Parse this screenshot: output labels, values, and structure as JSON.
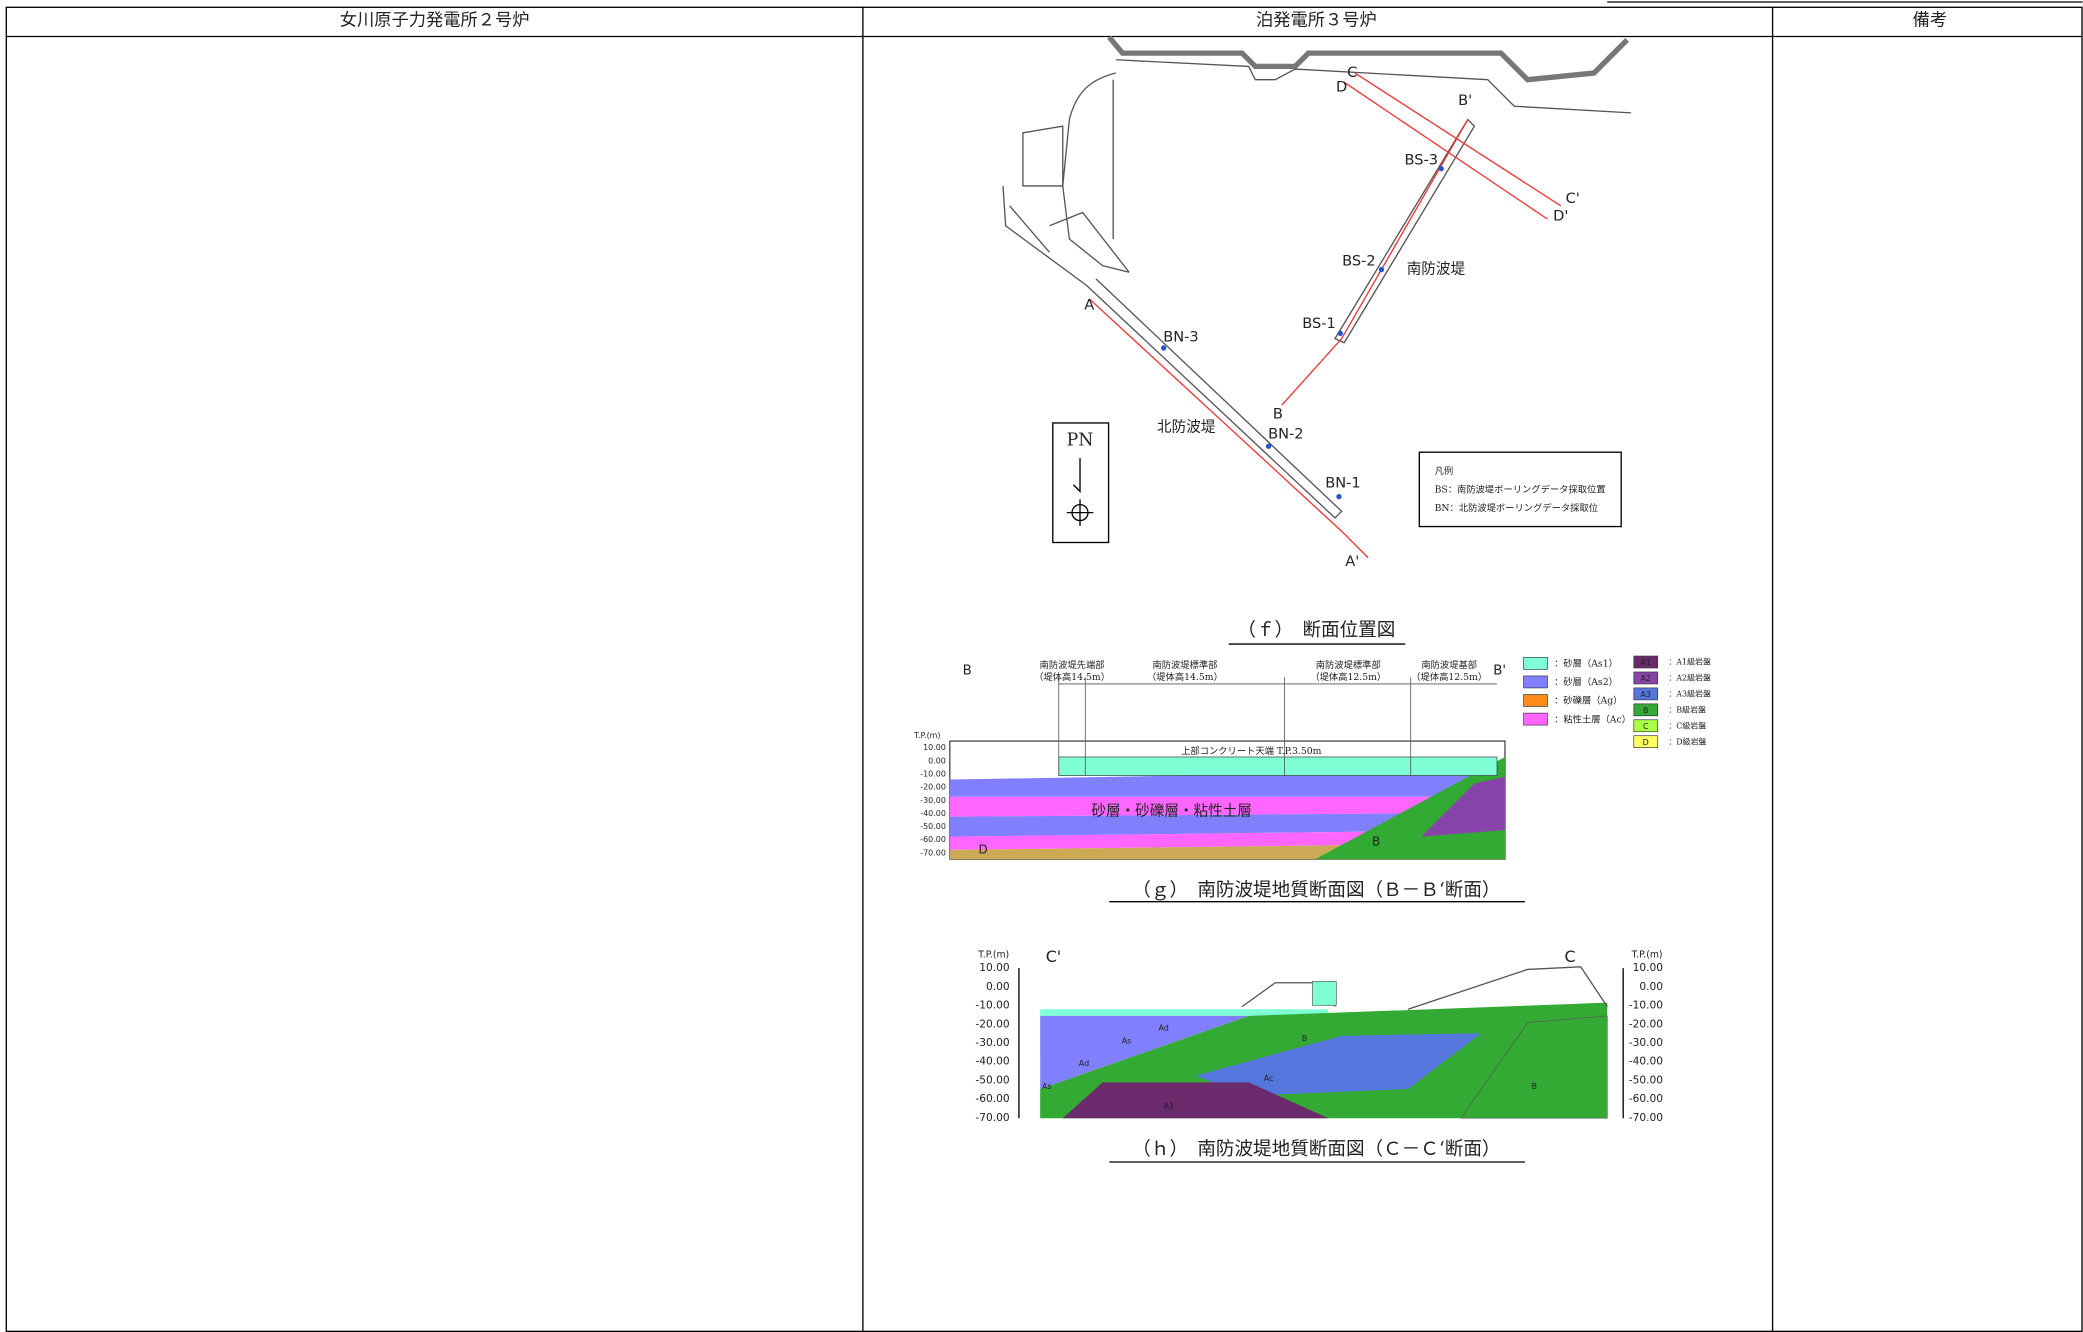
{
  "header": {
    "columns": [
      "女川原子力発電所２号炉",
      "泊発電所３号炉",
      "備考"
    ]
  },
  "figure_f": {
    "caption": "（ｆ）　断面位置図",
    "map_labels": [
      "A",
      "A'",
      "B",
      "B'",
      "C",
      "C'",
      "D",
      "D'",
      "BS-1",
      "BS-2",
      "BS-3",
      "BN-1",
      "BN-2",
      "BN-3",
      "南防波堤",
      "北防波堤",
      "PN"
    ],
    "legend": {
      "title": "凡例",
      "items": [
        "BS：南防波堤ボーリングデータ採取位置",
        "BN：北防波堤ボーリングデータ採取位"
      ]
    }
  },
  "figure_g": {
    "caption": "（ｇ）　南防波堤地質断面図（Ｂ－Ｂ‘断面）",
    "axis_title": "T.P.(m)",
    "ticks": [
      "10.00",
      "0.00",
      "-10.00",
      "-20.00",
      "-30.00",
      "-40.00",
      "-50.00",
      "-60.00",
      "-70.00"
    ],
    "section_ends": [
      "B",
      "B'"
    ],
    "segments": [
      {
        "name": "南防波堤先端部",
        "height": "（堤体高14.5m）"
      },
      {
        "name": "南防波堤標準部",
        "height": "（堤体高14.5m）"
      },
      {
        "name": "南防波堤標準部",
        "height": "（堤体高12.5m）"
      },
      {
        "name": "南防波堤基部",
        "height": "（堤体高12.5m）"
      }
    ],
    "top_label": "上部コンクリート天端 T.P.3.50m",
    "layer_label": "砂層・砂礫層・粘性土層",
    "rock_labels": [
      "D",
      "B"
    ],
    "soil_legend": [
      {
        "label": "：砂層（As1）",
        "color": "#7fffd4"
      },
      {
        "label": "：砂層（As2）",
        "color": "#8080ff"
      },
      {
        "label": "：砂礫層（Ag）",
        "color": "#ff8c1a"
      },
      {
        "label": "：粘性土層（Ac）",
        "color": "#ff66ff"
      }
    ],
    "rock_legend": [
      {
        "code": "A1",
        "label": "：A1級岩盤",
        "color": "#6b2a6b"
      },
      {
        "code": "A2",
        "label": "：A2級岩盤",
        "color": "#8844aa"
      },
      {
        "code": "A3",
        "label": "：A3級岩盤",
        "color": "#5577dd"
      },
      {
        "code": "B",
        "label": "：B級岩盤",
        "color": "#33aa33"
      },
      {
        "code": "C",
        "label": "：C級岩盤",
        "color": "#aaff44"
      },
      {
        "code": "D",
        "label": "：D級岩盤",
        "color": "#ffff66"
      }
    ]
  },
  "figure_h": {
    "caption": "（ｈ）　南防波堤地質断面図（Ｃ－Ｃ‘断面）",
    "axis_title": "T.P.(m)",
    "ticks": [
      "10.00",
      "0.00",
      "-10.00",
      "-20.00",
      "-30.00",
      "-40.00",
      "-50.00",
      "-60.00",
      "-70.00"
    ],
    "section_ends": [
      "C'",
      "C"
    ],
    "layer_labels": [
      "Ad",
      "As",
      "Ad",
      "As",
      "Ac",
      "B",
      "B",
      "A1"
    ]
  }
}
